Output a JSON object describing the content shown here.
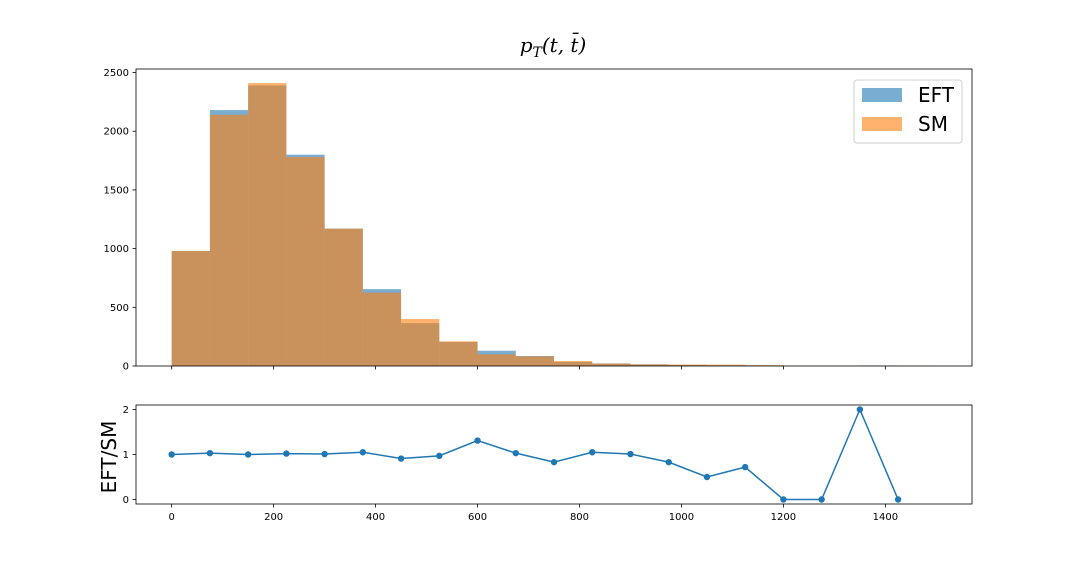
{
  "figure": {
    "title_base": "p",
    "title_sub": "T",
    "title_args": "(t, t̄)"
  },
  "colors": {
    "eft": "#1f77b4",
    "sm": "#ff7f0e",
    "ratio": "#1f77b4"
  },
  "chart_data": [
    {
      "type": "bar",
      "subtype": "overlaid-histogram",
      "bin_edges": [
        0,
        75,
        150,
        225,
        300,
        375,
        450,
        525,
        600,
        675,
        750,
        825,
        900,
        975,
        1050,
        1125,
        1200,
        1275,
        1350,
        1425,
        1500
      ],
      "series": [
        {
          "name": "EFT",
          "values": [
            980,
            2180,
            2390,
            1800,
            1170,
            655,
            365,
            205,
            130,
            85,
            35,
            22,
            14,
            10,
            6,
            5,
            0,
            0,
            4,
            0
          ]
        },
        {
          "name": "SM",
          "values": [
            980,
            2140,
            2410,
            1780,
            1170,
            625,
            400,
            210,
            100,
            82,
            42,
            21,
            14,
            12,
            12,
            7,
            3,
            3,
            2,
            2
          ]
        }
      ],
      "xlim": [
        -70,
        1570
      ],
      "ylim": [
        0,
        2530
      ],
      "yticks": [
        0,
        500,
        1000,
        1500,
        2000,
        2500
      ],
      "xticks": [
        0,
        200,
        400,
        600,
        800,
        1000,
        1200,
        1400
      ],
      "legend_placement": "top-right",
      "alpha": 0.6,
      "grid": false
    },
    {
      "type": "line",
      "ylabel": "EFT/SM",
      "x": [
        0,
        75,
        150,
        225,
        300,
        375,
        450,
        525,
        600,
        675,
        750,
        825,
        900,
        975,
        1050,
        1125,
        1200,
        1275,
        1350,
        1425
      ],
      "y": [
        1.0,
        1.03,
        1.0,
        1.02,
        1.01,
        1.05,
        0.91,
        0.97,
        1.31,
        1.03,
        0.83,
        1.05,
        1.01,
        0.83,
        0.5,
        0.72,
        0.0,
        0.0,
        2.0,
        0.0
      ],
      "xlim": [
        -70,
        1570
      ],
      "ylim": [
        -0.1,
        2.1
      ],
      "yticks": [
        0,
        1,
        2
      ],
      "xticks": [
        0,
        200,
        400,
        600,
        800,
        1000,
        1200,
        1400
      ],
      "xtick_labels": [
        "0",
        "200",
        "400",
        "600",
        "800",
        "1000",
        "1200",
        "1400"
      ],
      "marker": "circle",
      "grid": false
    }
  ]
}
